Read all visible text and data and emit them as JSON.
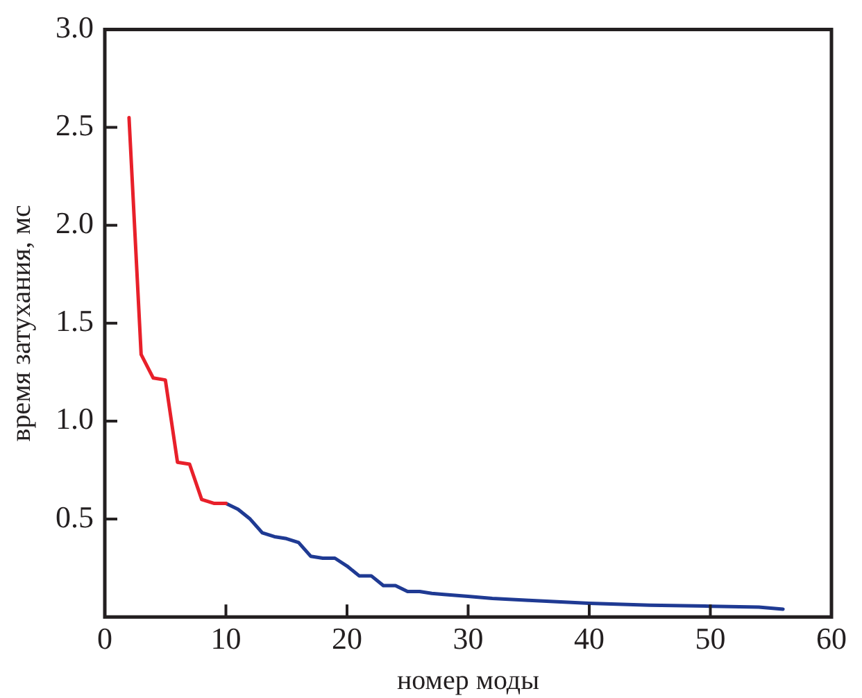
{
  "chart_data": {
    "type": "line",
    "xlabel": "номер моды",
    "ylabel": "время затухания, мс",
    "xlim": [
      0,
      60
    ],
    "xticks": [
      0,
      10,
      20,
      30,
      40,
      50,
      60
    ],
    "ylim": [
      0,
      3
    ],
    "yticks": [
      {
        "value": 0.5,
        "label": "0.5"
      },
      {
        "value": 1,
        "label": "1.0"
      },
      {
        "value": 1.5,
        "label": "1.5"
      },
      {
        "value": 2,
        "label": "2.0"
      },
      {
        "value": 2.5,
        "label": "2.5"
      },
      {
        "value": 3,
        "label": "3.0"
      }
    ],
    "grid": false,
    "legend": false,
    "marker": "none",
    "line_style": "solid",
    "series": [
      {
        "color": "#e8202a",
        "x": [
          2,
          3,
          4,
          5,
          6,
          7,
          8,
          9,
          10
        ],
        "values": [
          2.55,
          1.34,
          1.22,
          1.21,
          0.79,
          0.78,
          0.6,
          0.58,
          0.58
        ]
      },
      {
        "color": "#1f3a93",
        "x": [
          10,
          11,
          12,
          13,
          14,
          15,
          16,
          17,
          18,
          19,
          20,
          21,
          22,
          23,
          24,
          25,
          26,
          27,
          28,
          30,
          32,
          35,
          40,
          45,
          50,
          54,
          55,
          56
        ],
        "values": [
          0.58,
          0.55,
          0.5,
          0.43,
          0.41,
          0.4,
          0.38,
          0.31,
          0.3,
          0.3,
          0.26,
          0.21,
          0.21,
          0.16,
          0.16,
          0.13,
          0.13,
          0.12,
          0.115,
          0.105,
          0.095,
          0.085,
          0.07,
          0.06,
          0.055,
          0.05,
          0.045,
          0.04
        ]
      }
    ]
  }
}
